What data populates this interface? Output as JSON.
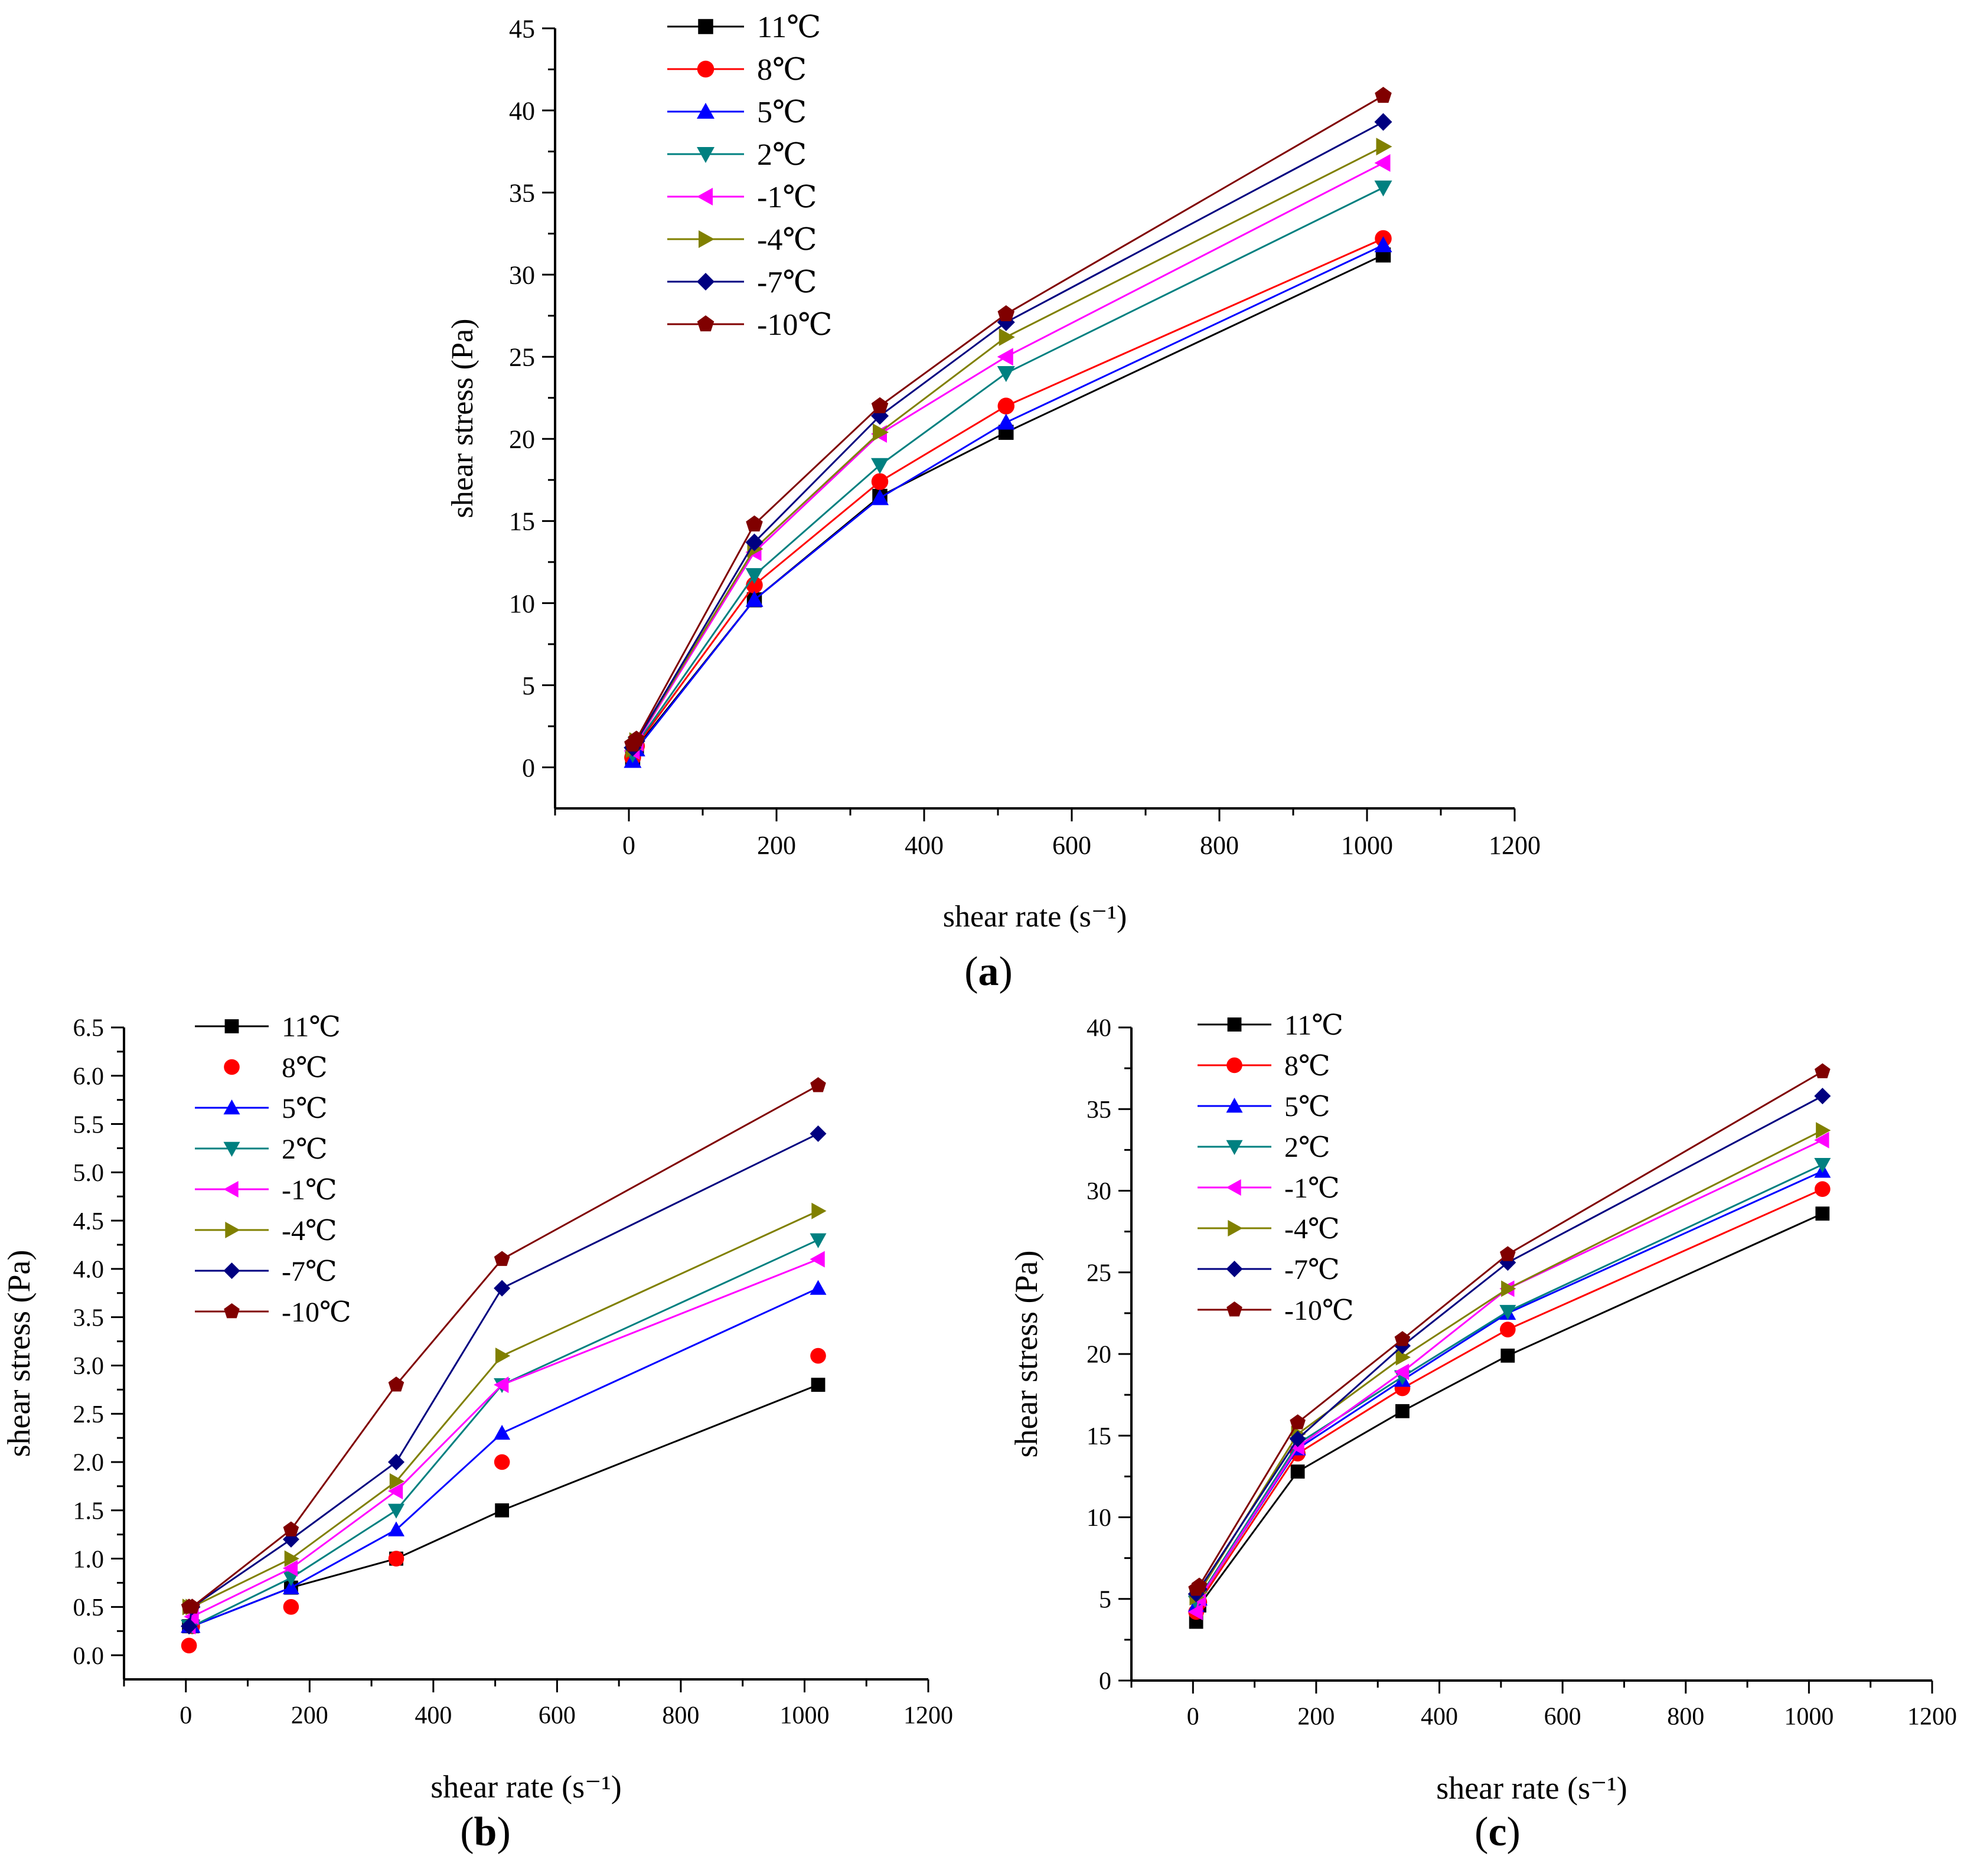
{
  "figure": {
    "panel_labels": [
      "(a)",
      "(b)",
      "(c)"
    ]
  },
  "series_styles": [
    {
      "color": "#000000",
      "marker": "square"
    },
    {
      "color": "#ff0000",
      "marker": "circle"
    },
    {
      "color": "#0000ff",
      "marker": "triangle-up"
    },
    {
      "color": "#008080",
      "marker": "triangle-down"
    },
    {
      "color": "#ff00ff",
      "marker": "triangle-left"
    },
    {
      "color": "#808000",
      "marker": "triangle-right"
    },
    {
      "color": "#000080",
      "marker": "diamond"
    },
    {
      "color": "#800000",
      "marker": "pentagon"
    }
  ],
  "chart_data": [
    {
      "panel": "(a)",
      "type": "line",
      "xlabel": "shear rate (s⁻¹)",
      "ylabel": "shear stress (Pa)",
      "xlim": [
        -100,
        1200
      ],
      "ylim": [
        -2.5,
        45
      ],
      "xticks": [
        0,
        200,
        400,
        600,
        800,
        1000,
        1200
      ],
      "yticks": [
        0,
        5,
        10,
        15,
        20,
        25,
        30,
        35,
        40,
        45
      ],
      "ytick_labels": [
        "0",
        "5",
        "10",
        "15",
        "20",
        "25",
        "30",
        "35",
        "40",
        "45"
      ],
      "legend_position": "top-left",
      "x": [
        5.1,
        10.2,
        170,
        340,
        511,
        1022
      ],
      "series": [
        {
          "name": "11℃",
          "values": [
            0.5,
            1.2,
            10.2,
            16.5,
            20.4,
            31.2
          ]
        },
        {
          "name": "8℃",
          "values": [
            0.6,
            1.3,
            11.1,
            17.4,
            22.0,
            32.2
          ]
        },
        {
          "name": "5℃",
          "values": [
            0.4,
            1.1,
            10.2,
            16.4,
            21.0,
            31.8
          ]
        },
        {
          "name": "2℃",
          "values": [
            0.8,
            1.4,
            11.7,
            18.4,
            24.0,
            35.3
          ]
        },
        {
          "name": "-1℃",
          "values": [
            1.0,
            1.5,
            13.1,
            20.3,
            25.0,
            36.8
          ]
        },
        {
          "name": "-4℃",
          "values": [
            1.1,
            1.6,
            13.3,
            20.4,
            26.2,
            37.8
          ]
        },
        {
          "name": "-7℃",
          "values": [
            1.2,
            1.6,
            13.7,
            21.4,
            27.1,
            39.3
          ]
        },
        {
          "name": "-10℃",
          "values": [
            1.4,
            1.7,
            14.8,
            22.0,
            27.6,
            40.9
          ]
        }
      ]
    },
    {
      "panel": "(b)",
      "type": "line",
      "xlabel": "shear rate (s⁻¹)",
      "ylabel": "shear stress (Pa)",
      "xlim": [
        -100,
        1200
      ],
      "ylim": [
        -0.25,
        6.5
      ],
      "xticks": [
        0,
        200,
        400,
        600,
        800,
        1000,
        1200
      ],
      "yticks": [
        0,
        0.5,
        1,
        1.5,
        2,
        2.5,
        3,
        3.5,
        4,
        4.5,
        5,
        5.5,
        6,
        6.5
      ],
      "ytick_labels": [
        "0.0",
        "0.5",
        "1.0",
        "1.5",
        "2.0",
        "2.5",
        "3.0",
        "3.5",
        "4.0",
        "4.5",
        "5.0",
        "5.5",
        "6.0",
        "6.5"
      ],
      "legend_position": "top-left",
      "x": [
        5.1,
        10.2,
        170,
        340,
        511,
        1022
      ],
      "series": [
        {
          "name": "11℃",
          "values": [
            0.3,
            0.3,
            0.7,
            1.0,
            1.5,
            2.8
          ]
        },
        {
          "name": "8℃",
          "values": [
            0.1,
            0.3,
            0.5,
            1.0,
            2.0,
            3.1
          ],
          "line": false
        },
        {
          "name": "5℃",
          "values": [
            0.3,
            0.3,
            0.7,
            1.3,
            2.3,
            3.8
          ]
        },
        {
          "name": "2℃",
          "values": [
            0.3,
            0.3,
            0.8,
            1.5,
            2.8,
            4.3
          ]
        },
        {
          "name": "-1℃",
          "values": [
            0.3,
            0.4,
            0.9,
            1.7,
            2.8,
            4.1
          ]
        },
        {
          "name": "-4℃",
          "values": [
            0.5,
            0.5,
            1.0,
            1.8,
            3.1,
            4.6
          ]
        },
        {
          "name": "-7℃",
          "values": [
            0.3,
            0.5,
            1.2,
            2.0,
            3.8,
            5.4
          ]
        },
        {
          "name": "-10℃",
          "values": [
            0.5,
            0.5,
            1.3,
            2.8,
            4.1,
            5.9
          ]
        }
      ]
    },
    {
      "panel": "(c)",
      "type": "line",
      "xlabel": "shear rate (s⁻¹)",
      "ylabel": "shear stress (Pa)",
      "xlim": [
        -100,
        1200
      ],
      "ylim": [
        0,
        40
      ],
      "xticks": [
        0,
        200,
        400,
        600,
        800,
        1000,
        1200
      ],
      "yticks": [
        0,
        5,
        10,
        15,
        20,
        25,
        30,
        35,
        40
      ],
      "ytick_labels": [
        "0",
        "5",
        "10",
        "15",
        "20",
        "25",
        "30",
        "35",
        "40"
      ],
      "legend_position": "top-left",
      "x": [
        5.1,
        10.2,
        170,
        340,
        511,
        1022
      ],
      "series": [
        {
          "name": "11℃",
          "values": [
            3.6,
            4.6,
            12.8,
            16.5,
            19.9,
            28.6
          ]
        },
        {
          "name": "8℃",
          "values": [
            4.2,
            4.8,
            13.9,
            17.9,
            21.5,
            30.1
          ]
        },
        {
          "name": "5℃",
          "values": [
            4.6,
            5.0,
            14.2,
            18.4,
            22.5,
            31.2
          ]
        },
        {
          "name": "2℃",
          "values": [
            4.8,
            5.1,
            14.5,
            18.6,
            22.6,
            31.6
          ]
        },
        {
          "name": "-1℃",
          "values": [
            4.2,
            5.0,
            14.3,
            18.9,
            24.0,
            33.1
          ]
        },
        {
          "name": "-4℃",
          "values": [
            5.1,
            5.4,
            15.1,
            19.8,
            24.0,
            33.7
          ]
        },
        {
          "name": "-7℃",
          "values": [
            5.3,
            5.6,
            14.8,
            20.5,
            25.6,
            35.8
          ]
        },
        {
          "name": "-10℃",
          "values": [
            5.6,
            5.8,
            15.8,
            20.9,
            26.1,
            37.3
          ]
        }
      ]
    }
  ]
}
